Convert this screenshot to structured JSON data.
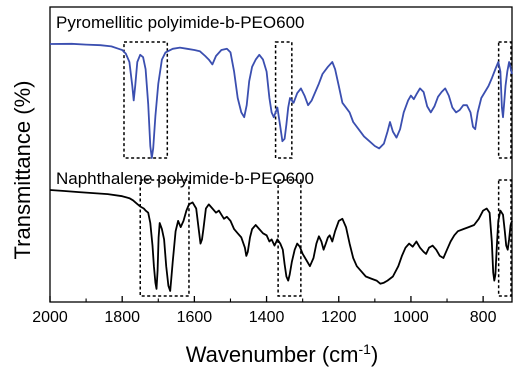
{
  "chart_data": {
    "type": "line",
    "xlabel": "Wavenumber (cm",
    "xlabel_sup": "-1",
    "xlabel_close": ")",
    "ylabel": "Transmittance (%)",
    "xlim": [
      2000,
      720
    ],
    "x_reversed": true,
    "xticks": [
      2000,
      1800,
      1600,
      1400,
      1200,
      1000,
      800
    ],
    "xtick_labels": [
      "2000",
      "1800",
      "1600",
      "1400",
      "1200",
      "1000",
      "800"
    ],
    "y_ticks_shown": false,
    "grid": false,
    "series": [
      {
        "name": "Pyromellitic polyimide-b-PEO600",
        "color": "#3B4FB0",
        "level": "upper",
        "points": [
          [
            2000,
            5
          ],
          [
            1940,
            4.8
          ],
          [
            1900,
            5.5
          ],
          [
            1860,
            6
          ],
          [
            1830,
            7
          ],
          [
            1810,
            9
          ],
          [
            1800,
            10
          ],
          [
            1790,
            13
          ],
          [
            1780,
            20
          ],
          [
            1772,
            40
          ],
          [
            1768,
            52
          ],
          [
            1764,
            40
          ],
          [
            1758,
            20
          ],
          [
            1750,
            14
          ],
          [
            1742,
            16
          ],
          [
            1735,
            26
          ],
          [
            1728,
            55
          ],
          [
            1722,
            90
          ],
          [
            1718,
            100
          ],
          [
            1714,
            92
          ],
          [
            1708,
            65
          ],
          [
            1700,
            38
          ],
          [
            1690,
            18
          ],
          [
            1680,
            12
          ],
          [
            1660,
            9
          ],
          [
            1640,
            8
          ],
          [
            1620,
            9
          ],
          [
            1600,
            10
          ],
          [
            1585,
            11
          ],
          [
            1570,
            15
          ],
          [
            1560,
            18
          ],
          [
            1550,
            22
          ],
          [
            1540,
            15
          ],
          [
            1525,
            10
          ],
          [
            1510,
            9
          ],
          [
            1500,
            12
          ],
          [
            1490,
            28
          ],
          [
            1480,
            50
          ],
          [
            1470,
            62
          ],
          [
            1462,
            66
          ],
          [
            1455,
            56
          ],
          [
            1448,
            36
          ],
          [
            1440,
            24
          ],
          [
            1430,
            18
          ],
          [
            1420,
            14
          ],
          [
            1410,
            18
          ],
          [
            1400,
            28
          ],
          [
            1392,
            50
          ],
          [
            1386,
            62
          ],
          [
            1380,
            66
          ],
          [
            1370,
            58
          ],
          [
            1362,
            74
          ],
          [
            1356,
            86
          ],
          [
            1350,
            84
          ],
          [
            1345,
            72
          ],
          [
            1340,
            58
          ],
          [
            1335,
            50
          ],
          [
            1325,
            54
          ],
          [
            1315,
            46
          ],
          [
            1305,
            42
          ],
          [
            1295,
            48
          ],
          [
            1285,
            56
          ],
          [
            1275,
            52
          ],
          [
            1265,
            45
          ],
          [
            1255,
            38
          ],
          [
            1245,
            30
          ],
          [
            1230,
            24
          ],
          [
            1218,
            20
          ],
          [
            1210,
            26
          ],
          [
            1200,
            40
          ],
          [
            1190,
            54
          ],
          [
            1180,
            58
          ],
          [
            1170,
            62
          ],
          [
            1160,
            70
          ],
          [
            1145,
            76
          ],
          [
            1130,
            82
          ],
          [
            1115,
            86
          ],
          [
            1100,
            90
          ],
          [
            1088,
            92
          ],
          [
            1075,
            88
          ],
          [
            1065,
            78
          ],
          [
            1058,
            70
          ],
          [
            1050,
            78
          ],
          [
            1040,
            83
          ],
          [
            1030,
            76
          ],
          [
            1020,
            62
          ],
          [
            1008,
            52
          ],
          [
            1000,
            48
          ],
          [
            992,
            51
          ],
          [
            985,
            47
          ],
          [
            975,
            42
          ],
          [
            965,
            45
          ],
          [
            955,
            57
          ],
          [
            945,
            62
          ],
          [
            935,
            57
          ],
          [
            925,
            49
          ],
          [
            915,
            45
          ],
          [
            905,
            42
          ],
          [
            895,
            48
          ],
          [
            885,
            58
          ],
          [
            875,
            62
          ],
          [
            865,
            60
          ],
          [
            855,
            56
          ],
          [
            845,
            56
          ],
          [
            835,
            62
          ],
          [
            828,
            74
          ],
          [
            822,
            76
          ],
          [
            815,
            62
          ],
          [
            805,
            50
          ],
          [
            795,
            45
          ],
          [
            785,
            40
          ],
          [
            775,
            33
          ],
          [
            765,
            25
          ],
          [
            758,
            20
          ],
          [
            752,
            28
          ],
          [
            748,
            58
          ],
          [
            745,
            66
          ],
          [
            742,
            55
          ],
          [
            738,
            40
          ],
          [
            733,
            28
          ],
          [
            728,
            20
          ],
          [
            724,
            25
          ],
          [
            720,
            30
          ]
        ]
      },
      {
        "name": "Naphthalene polyimide-b-PEO600",
        "color": "#000000",
        "level": "lower",
        "points": [
          [
            2000,
            0
          ],
          [
            1960,
            1
          ],
          [
            1920,
            2
          ],
          [
            1880,
            3
          ],
          [
            1840,
            4
          ],
          [
            1800,
            6
          ],
          [
            1780,
            8
          ],
          [
            1770,
            10
          ],
          [
            1760,
            13
          ],
          [
            1750,
            16
          ],
          [
            1740,
            18
          ],
          [
            1735,
            20
          ],
          [
            1728,
            22
          ],
          [
            1722,
            32
          ],
          [
            1716,
            54
          ],
          [
            1712,
            74
          ],
          [
            1708,
            90
          ],
          [
            1705,
            96
          ],
          [
            1702,
            78
          ],
          [
            1699,
            46
          ],
          [
            1696,
            32
          ],
          [
            1690,
            38
          ],
          [
            1684,
            48
          ],
          [
            1678,
            74
          ],
          [
            1672,
            93
          ],
          [
            1667,
            98
          ],
          [
            1664,
            86
          ],
          [
            1660,
            70
          ],
          [
            1652,
            40
          ],
          [
            1645,
            30
          ],
          [
            1638,
            36
          ],
          [
            1630,
            30
          ],
          [
            1622,
            20
          ],
          [
            1615,
            14
          ],
          [
            1605,
            12
          ],
          [
            1595,
            18
          ],
          [
            1588,
            38
          ],
          [
            1583,
            52
          ],
          [
            1579,
            48
          ],
          [
            1575,
            38
          ],
          [
            1568,
            18
          ],
          [
            1560,
            14
          ],
          [
            1550,
            18
          ],
          [
            1540,
            22
          ],
          [
            1532,
            20
          ],
          [
            1525,
            24
          ],
          [
            1518,
            28
          ],
          [
            1510,
            26
          ],
          [
            1500,
            30
          ],
          [
            1490,
            38
          ],
          [
            1480,
            42
          ],
          [
            1470,
            46
          ],
          [
            1460,
            56
          ],
          [
            1456,
            64
          ],
          [
            1452,
            60
          ],
          [
            1446,
            46
          ],
          [
            1440,
            38
          ],
          [
            1430,
            34
          ],
          [
            1420,
            38
          ],
          [
            1410,
            42
          ],
          [
            1400,
            44
          ],
          [
            1392,
            50
          ],
          [
            1386,
            48
          ],
          [
            1378,
            54
          ],
          [
            1370,
            48
          ],
          [
            1362,
            52
          ],
          [
            1355,
            58
          ],
          [
            1350,
            72
          ],
          [
            1345,
            84
          ],
          [
            1340,
            88
          ],
          [
            1336,
            82
          ],
          [
            1330,
            70
          ],
          [
            1322,
            58
          ],
          [
            1315,
            52
          ],
          [
            1308,
            55
          ],
          [
            1300,
            62
          ],
          [
            1290,
            68
          ],
          [
            1280,
            74
          ],
          [
            1270,
            66
          ],
          [
            1262,
            52
          ],
          [
            1255,
            45
          ],
          [
            1248,
            50
          ],
          [
            1242,
            58
          ],
          [
            1236,
            52
          ],
          [
            1230,
            46
          ],
          [
            1225,
            44
          ],
          [
            1218,
            50
          ],
          [
            1210,
            40
          ],
          [
            1200,
            30
          ],
          [
            1190,
            28
          ],
          [
            1180,
            36
          ],
          [
            1170,
            52
          ],
          [
            1160,
            66
          ],
          [
            1150,
            74
          ],
          [
            1140,
            78
          ],
          [
            1125,
            84
          ],
          [
            1110,
            86
          ],
          [
            1095,
            88
          ],
          [
            1085,
            91
          ],
          [
            1075,
            90
          ],
          [
            1065,
            88
          ],
          [
            1050,
            84
          ],
          [
            1035,
            74
          ],
          [
            1025,
            64
          ],
          [
            1015,
            56
          ],
          [
            1005,
            52
          ],
          [
            995,
            55
          ],
          [
            985,
            50
          ],
          [
            975,
            56
          ],
          [
            965,
            60
          ],
          [
            958,
            62
          ],
          [
            950,
            56
          ],
          [
            940,
            54
          ],
          [
            930,
            58
          ],
          [
            920,
            64
          ],
          [
            910,
            66
          ],
          [
            900,
            58
          ],
          [
            890,
            50
          ],
          [
            880,
            44
          ],
          [
            870,
            40
          ],
          [
            855,
            38
          ],
          [
            840,
            36
          ],
          [
            825,
            34
          ],
          [
            812,
            28
          ],
          [
            800,
            20
          ],
          [
            790,
            18
          ],
          [
            782,
            22
          ],
          [
            776,
            50
          ],
          [
            772,
            80
          ],
          [
            769,
            88
          ],
          [
            766,
            82
          ],
          [
            762,
            55
          ],
          [
            758,
            30
          ],
          [
            752,
            20
          ],
          [
            745,
            24
          ],
          [
            740,
            40
          ],
          [
            736,
            54
          ],
          [
            732,
            58
          ],
          [
            728,
            48
          ],
          [
            724,
            34
          ],
          [
            720,
            30
          ]
        ]
      }
    ],
    "annotation_boxes": [
      {
        "series": "upper",
        "x_from": 1795,
        "x_to": 1675
      },
      {
        "series": "upper",
        "x_from": 1375,
        "x_to": 1330
      },
      {
        "series": "upper",
        "x_from": 757,
        "x_to": 720
      },
      {
        "series": "lower",
        "x_from": 1750,
        "x_to": 1615
      },
      {
        "series": "lower",
        "x_from": 1368,
        "x_to": 1305
      },
      {
        "series": "lower",
        "x_from": 757,
        "x_to": 720
      }
    ]
  }
}
